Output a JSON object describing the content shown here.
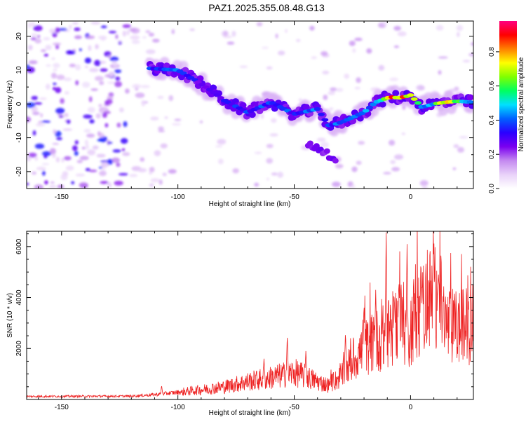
{
  "title": "PAZ1.2025.355.08.48.G13",
  "chart_data": [
    {
      "type": "heatmap",
      "xlabel": "Height of straight line (km)",
      "ylabel": "Frequency (Hz)",
      "xlim": [
        -165,
        27
      ],
      "ylim": [
        -25,
        24.5
      ],
      "xticks": [
        -150,
        -100,
        -50,
        0
      ],
      "yticks": [
        -20,
        -10,
        0,
        10,
        20
      ],
      "colorbar": {
        "label": "Normalized spectral amplitude",
        "range": [
          0,
          0.98
        ],
        "ticks": [
          0.0,
          0.2,
          0.4,
          0.6,
          0.8
        ],
        "tick_labels": [
          "0.0",
          "0.2",
          "0.4",
          "0.6",
          "0.8"
        ],
        "colormap": [
          "#ffffff",
          "#e9d2f9",
          "#c489f0",
          "#7a00f0",
          "#2a00ff",
          "#0060ff",
          "#00e0ff",
          "#00ff60",
          "#80ff00",
          "#ffff00",
          "#ff8000",
          "#ff0000",
          "#ff0080"
        ]
      },
      "ridge": {
        "x": [
          -112,
          -100,
          -90,
          -80,
          -70,
          -60,
          -50,
          -40,
          -35,
          -30,
          -25,
          -20,
          -15,
          -10,
          -8,
          -5,
          -2,
          0,
          5,
          10,
          15,
          20,
          27
        ],
        "y": [
          10.5,
          10.0,
          6.0,
          1.0,
          -2.5,
          0.5,
          -3.0,
          -1.5,
          -6.5,
          -5.5,
          -4.0,
          -2.5,
          0.5,
          1.8,
          2.0,
          1.8,
          2.2,
          2.6,
          -1.0,
          0.0,
          0.5,
          0.8,
          0.5
        ],
        "amplitude": [
          0.4,
          0.45,
          0.3,
          0.35,
          0.4,
          0.45,
          0.4,
          0.45,
          0.4,
          0.45,
          0.45,
          0.5,
          0.5,
          0.7,
          0.9,
          0.95,
          0.85,
          0.8,
          0.5,
          0.55,
          0.85,
          0.7,
          0.5
        ]
      }
    },
    {
      "type": "line",
      "xlabel": "Height of straight line (km)",
      "ylabel": "SNR (10 * v/v)",
      "xlim": [
        -165,
        27
      ],
      "ylim": [
        0,
        6600
      ],
      "xticks": [
        -150,
        -100,
        -50,
        0
      ],
      "yticks": [
        2000,
        4000,
        6000
      ],
      "color": "#ee2222",
      "trend": {
        "x": [
          -165,
          -120,
          -110,
          -100,
          -90,
          -80,
          -70,
          -60,
          -50,
          -45,
          -40,
          -35,
          -30,
          -25,
          -20,
          -15,
          -12,
          -10,
          -8,
          -5,
          -3,
          -1,
          0,
          2,
          5,
          8,
          10,
          12,
          15,
          20,
          27
        ],
        "y": [
          120,
          130,
          190,
          280,
          380,
          500,
          700,
          850,
          1050,
          900,
          700,
          550,
          900,
          1500,
          2000,
          2300,
          2400,
          2550,
          2700,
          3100,
          3000,
          2200,
          2800,
          3400,
          3600,
          3900,
          4000,
          4100,
          2900,
          2800,
          3000
        ]
      },
      "spikes": [
        {
          "x": -107,
          "y": 560
        },
        {
          "x": -63,
          "y": 1600
        },
        {
          "x": -53,
          "y": 2600
        },
        {
          "x": -45,
          "y": 1900
        },
        {
          "x": -28,
          "y": 2700
        },
        {
          "x": -20,
          "y": 3800
        },
        {
          "x": -15,
          "y": 4300
        },
        {
          "x": -10.5,
          "y": 6550
        },
        {
          "x": -7,
          "y": 4000
        },
        {
          "x": -5,
          "y": 4700
        },
        {
          "x": -1.5,
          "y": 6100
        },
        {
          "x": -0.5,
          "y": 550
        },
        {
          "x": 5,
          "y": 4500
        },
        {
          "x": 10,
          "y": 5100
        },
        {
          "x": 12,
          "y": 4900
        },
        {
          "x": 14,
          "y": 1700
        }
      ]
    }
  ]
}
